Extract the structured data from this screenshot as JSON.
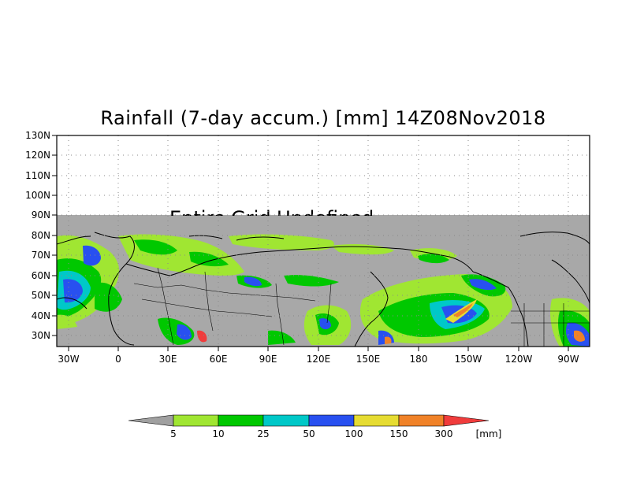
{
  "title": "Rainfall (7-day accum.) [mm] 14Z08Nov2018",
  "overlay_text": "Entire Grid Undefined",
  "map": {
    "lat_labels": [
      "130N",
      "120N",
      "110N",
      "100N",
      "90N",
      "80N",
      "70N",
      "60N",
      "50N",
      "40N",
      "30N"
    ],
    "lon_labels": [
      "30W",
      "0",
      "30E",
      "60E",
      "90E",
      "120E",
      "150E",
      "180",
      "150W",
      "120W",
      "90W"
    ]
  },
  "colorbar": {
    "labels": [
      "5",
      "10",
      "25",
      "50",
      "100",
      "150",
      "300"
    ],
    "unit": "[mm]",
    "colors": [
      "#a0e632",
      "#00c800",
      "#00c8c8",
      "#2850f0",
      "#e6dc32",
      "#f08228",
      "#f03c3c"
    ],
    "below_color": "#a0a0a0"
  },
  "colors": {
    "missing_gray": "#a8a8a8",
    "land_gray": "#a0a0a0"
  }
}
